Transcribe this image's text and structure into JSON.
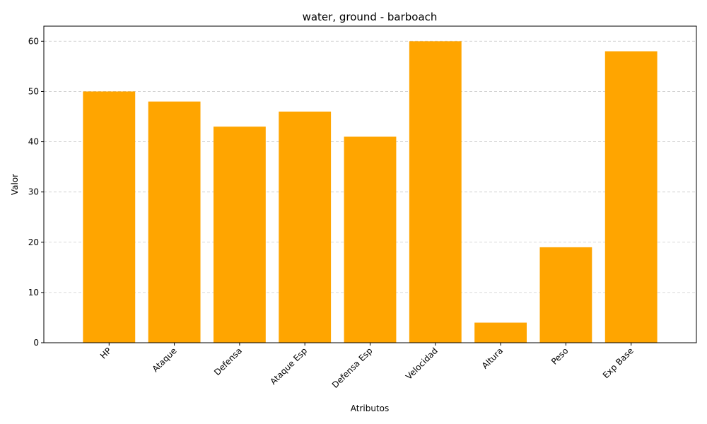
{
  "chart_data": {
    "type": "bar",
    "title": "water, ground - barboach",
    "xlabel": "Atributos",
    "ylabel": "Valor",
    "categories": [
      "HP",
      "Ataque",
      "Defensa",
      "Ataque Esp",
      "Defensa Esp",
      "Velocidad",
      "Altura",
      "Peso",
      "Exp Base"
    ],
    "values": [
      50,
      48,
      43,
      46,
      41,
      60,
      4,
      19,
      58
    ],
    "ylim": [
      0,
      63
    ],
    "yticks": [
      0,
      10,
      20,
      30,
      40,
      50,
      60
    ],
    "grid": "y-dashed",
    "bar_color": "#FFA500",
    "grid_color": "#cccccc"
  }
}
